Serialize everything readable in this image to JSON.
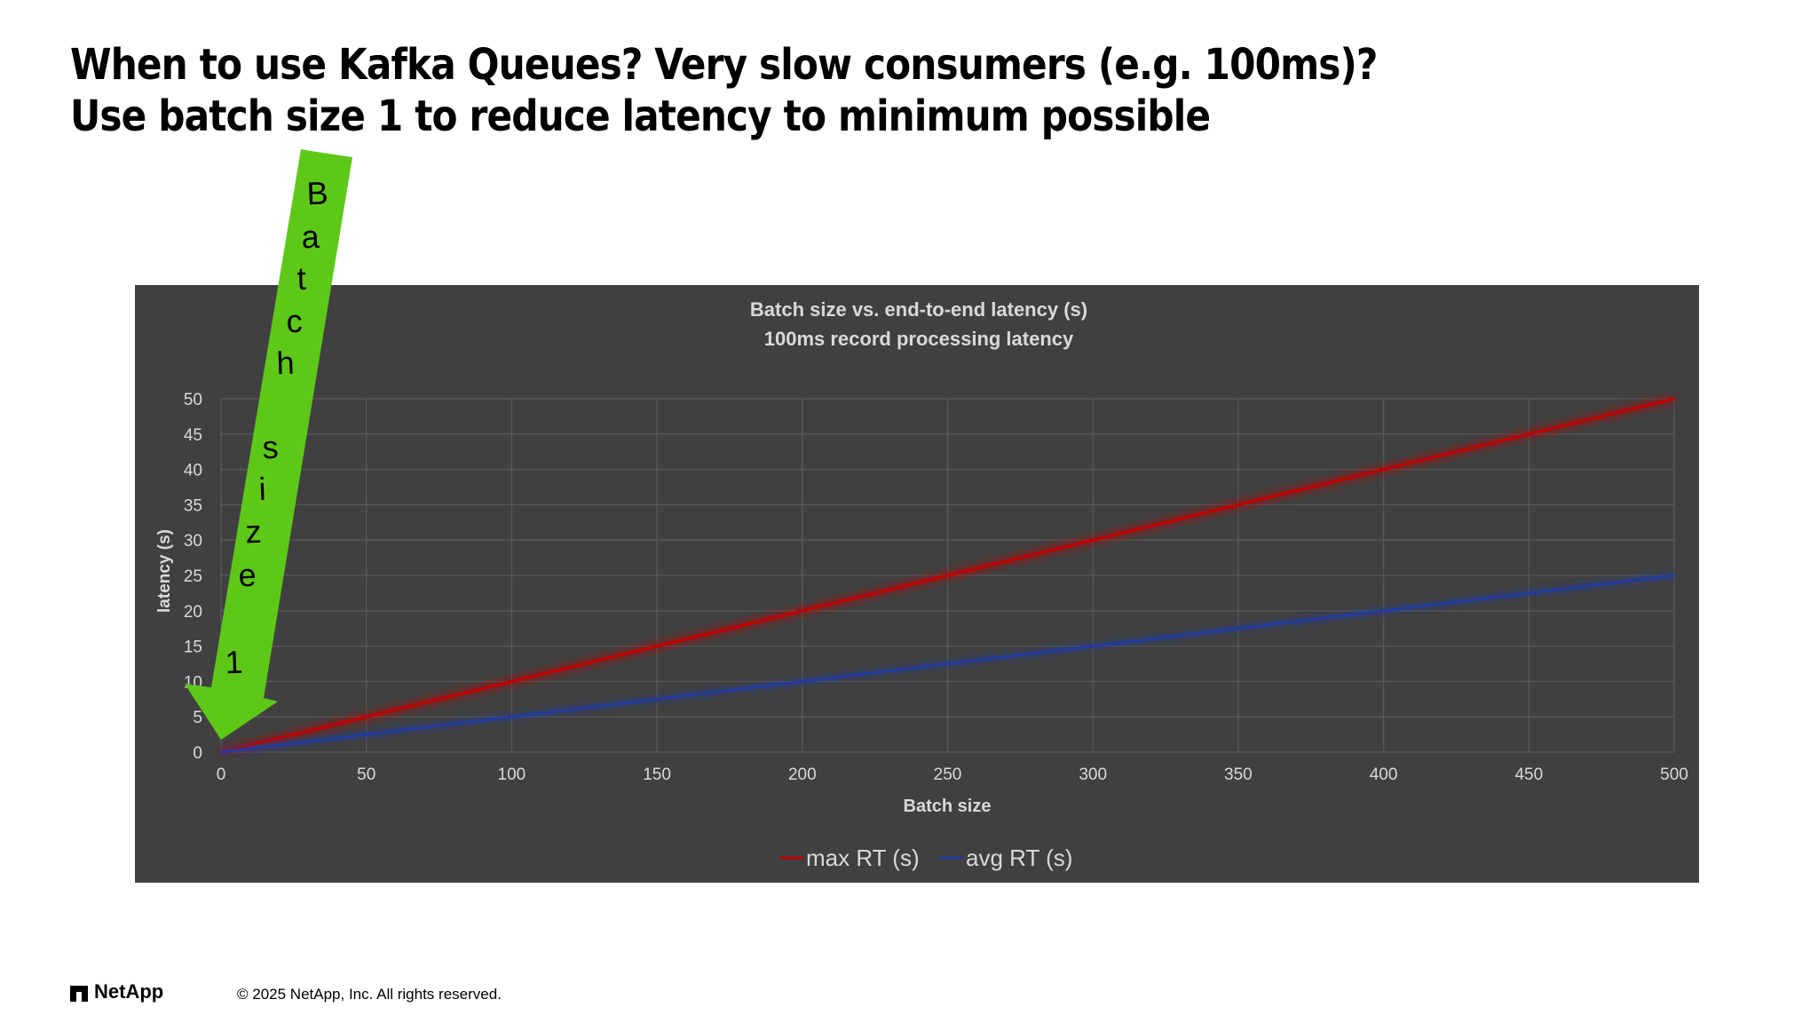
{
  "slide": {
    "title_line1": "When to use Kafka Queues? Very slow consumers (e.g. 100ms)?",
    "title_line2": "Use batch size 1 to reduce latency to minimum possible"
  },
  "annotation": {
    "letters": [
      "B",
      "a",
      "t",
      "c",
      "h",
      "s",
      "i",
      "z",
      "e",
      "1"
    ],
    "arrow_color": "#5ec819",
    "arrow_points_to_x": 0,
    "arrow_points_to_y": 0
  },
  "chart_data": {
    "type": "line",
    "title": "Batch size vs.  end-to-end latency (s)",
    "subtitle": "100ms record processing latency",
    "xlabel": "Batch size",
    "ylabel": "latency (s)",
    "xlim": [
      0,
      500
    ],
    "ylim": [
      0,
      50
    ],
    "x_ticks": [
      0,
      50,
      100,
      150,
      200,
      250,
      300,
      350,
      400,
      450,
      500
    ],
    "y_ticks": [
      0,
      5,
      10,
      15,
      20,
      25,
      30,
      35,
      40,
      45,
      50
    ],
    "grid": true,
    "legend_position": "bottom-center",
    "series": [
      {
        "name": "max RT (s)",
        "color": "#c00000",
        "x": [
          0,
          500
        ],
        "y": [
          0,
          50
        ]
      },
      {
        "name": "avg RT (s)",
        "color": "#203aa0",
        "x": [
          0,
          500
        ],
        "y": [
          0,
          25
        ]
      }
    ],
    "background": "#404040",
    "text_color": "#d9d9d9",
    "grid_color": "#595959"
  },
  "footer": {
    "logo_text": "NetApp",
    "copyright": "© 2025 NetApp, Inc. All rights reserved."
  }
}
